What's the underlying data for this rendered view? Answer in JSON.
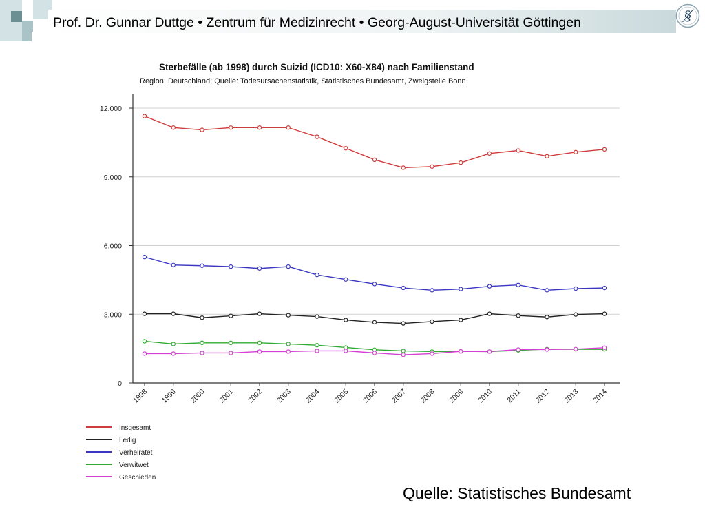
{
  "header": {
    "text": "Prof. Dr. Gunnar Duttge • Zentrum für Medizinrecht • Georg-August-Universität Göttingen",
    "logo_icon": "section-sign-seal-icon"
  },
  "footer": {
    "source": "Quelle: Statistisches Bundesamt"
  },
  "colors": {
    "deco_dark": "#6b8f92",
    "deco_light": "#a9c3c6",
    "deco_pale": "#d3e2e4"
  },
  "chart_data": {
    "type": "line",
    "title": "Sterbefälle (ab 1998) durch Suizid (ICD10: X60-X84) nach Familienstand",
    "subtitle": "Region: Deutschland; Quelle: Todesursachenstatistik, Statistisches Bundesamt, Zweigstelle Bonn",
    "x": [
      "1998",
      "1999",
      "2000",
      "2001",
      "2002",
      "2003",
      "2004",
      "2005",
      "2006",
      "2007",
      "2008",
      "2009",
      "2010",
      "2011",
      "2012",
      "2013",
      "2014"
    ],
    "ylim": [
      0,
      12000
    ],
    "yticks": [
      0,
      3000,
      6000,
      9000,
      12000
    ],
    "ytick_labels": [
      "0",
      "3.000",
      "6.000",
      "9.000",
      "12.000"
    ],
    "grid": true,
    "legend_position": "bottom-left",
    "series": [
      {
        "name": "Insgesamt",
        "color": "#d23b3b",
        "values": [
          11650,
          11150,
          11050,
          11150,
          11150,
          11150,
          10750,
          10250,
          9750,
          9400,
          9450,
          9620,
          10020,
          10150,
          9900,
          10080,
          10200
        ]
      },
      {
        "name": "Ledig",
        "color": "#222222",
        "values": [
          3020,
          3020,
          2850,
          2930,
          3020,
          2960,
          2900,
          2750,
          2650,
          2600,
          2680,
          2750,
          3020,
          2940,
          2880,
          2990,
          3020
        ]
      },
      {
        "name": "Verheiratet",
        "color": "#3a37c4",
        "values": [
          5500,
          5150,
          5120,
          5080,
          5000,
          5080,
          4720,
          4520,
          4320,
          4150,
          4050,
          4100,
          4220,
          4280,
          4050,
          4120,
          4150
        ]
      },
      {
        "name": "Verwitwet",
        "color": "#33aa33",
        "values": [
          1820,
          1700,
          1750,
          1750,
          1750,
          1700,
          1650,
          1550,
          1450,
          1400,
          1370,
          1380,
          1370,
          1420,
          1480,
          1470,
          1470
        ]
      },
      {
        "name": "Geschieden",
        "color": "#d43fd4",
        "values": [
          1280,
          1280,
          1310,
          1310,
          1370,
          1370,
          1400,
          1400,
          1310,
          1230,
          1280,
          1380,
          1370,
          1460,
          1460,
          1480,
          1540
        ]
      }
    ]
  }
}
